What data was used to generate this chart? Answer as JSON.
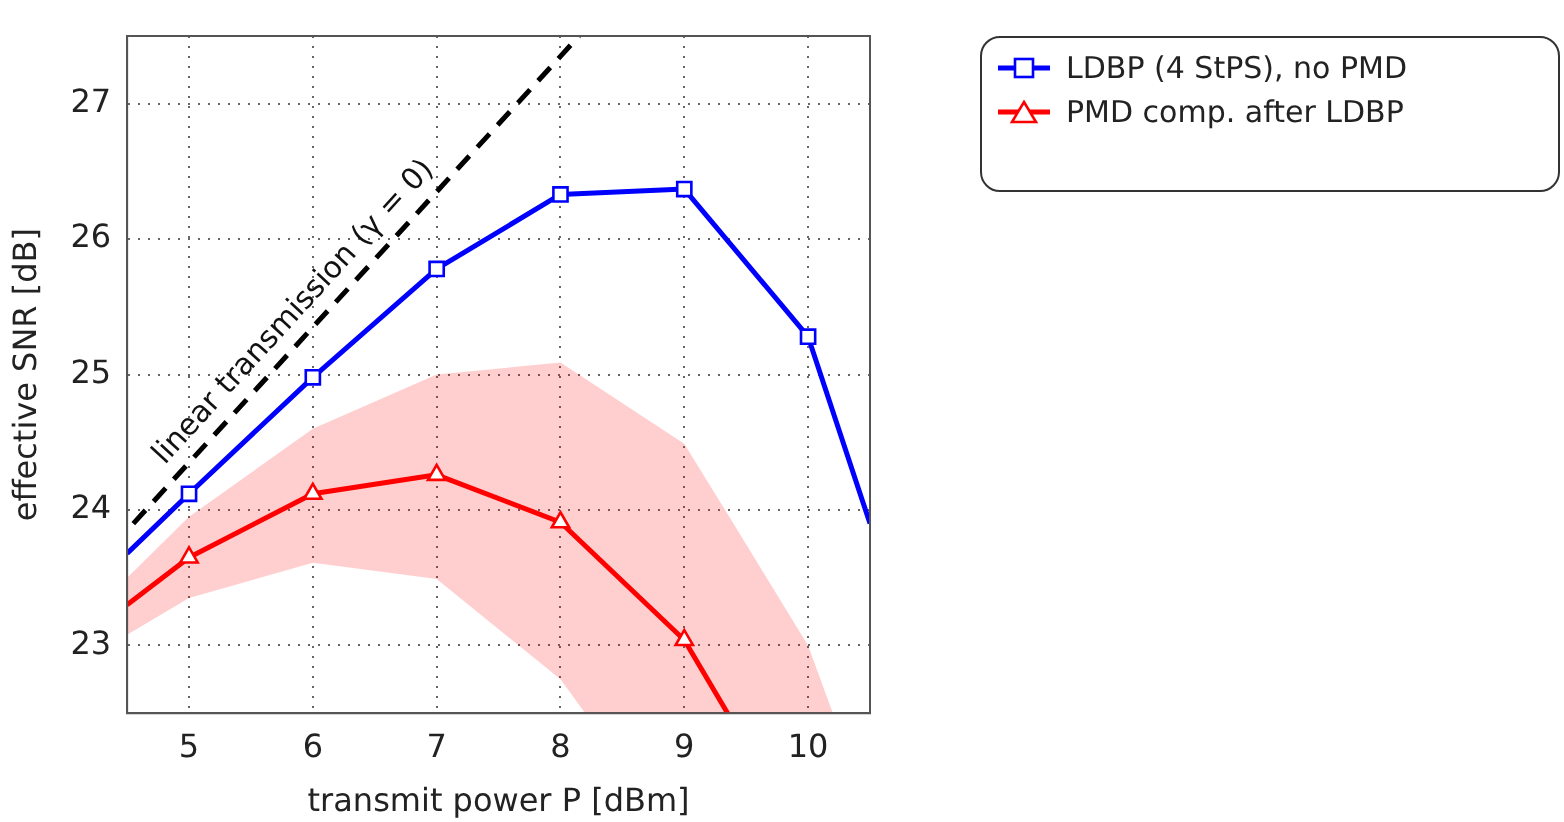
{
  "chart_data": {
    "type": "line",
    "xlabel": "transmit power P [dBm]",
    "ylabel": "effective SNR [dB]",
    "xlim": [
      4.5,
      10.5
    ],
    "xticks": [
      5,
      6,
      7,
      8,
      9,
      10
    ],
    "ylim": [
      22.5,
      27.5
    ],
    "yticks": [
      23,
      24,
      25,
      26,
      27
    ],
    "grid": true,
    "legend": "top right",
    "series": [
      {
        "name": "LDBP (4 StPS), no PMD",
        "color": "#0000ff",
        "marker": "square",
        "line_style": "solid",
        "x": [
          4.5,
          5,
          6,
          7,
          8,
          9,
          10,
          10.5
        ],
        "values": [
          23.68,
          24.12,
          24.98,
          25.78,
          26.33,
          26.37,
          25.28,
          23.9
        ]
      },
      {
        "name": "PMD comp. after LDBP",
        "color": "#ff0000",
        "marker": "triangle",
        "line_style": "solid",
        "x": [
          4.5,
          5,
          6,
          7,
          8,
          8.2,
          9,
          9.35,
          10,
          10.2
        ],
        "values": [
          23.3,
          23.65,
          24.12,
          24.26,
          23.91,
          null,
          23.04,
          22.5,
          null,
          null
        ],
        "lower": [
          23.08,
          23.35,
          23.61,
          23.49,
          22.75,
          22.5,
          22.5,
          22.5,
          22.5,
          22.5
        ],
        "upper": [
          23.5,
          23.95,
          24.6,
          25.0,
          25.09,
          24.97,
          24.49,
          23.97,
          23.0,
          22.5
        ]
      },
      {
        "name": "linear transmission (γ = 0)",
        "color": "#000000",
        "marker": "none",
        "line_style": "dashed",
        "x": [
          4.55,
          8.15
        ],
        "values": [
          23.9,
          27.5
        ]
      }
    ]
  }
}
